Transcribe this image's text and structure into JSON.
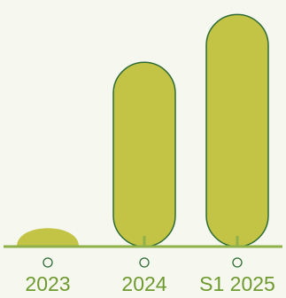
{
  "chart_data": {
    "type": "bar",
    "categories": [
      "2023",
      "2024",
      "S1 2025"
    ],
    "values": [
      1,
      10,
      12.6
    ],
    "title": "",
    "xlabel": "",
    "ylabel": "",
    "ylim": [
      0,
      13
    ],
    "grid": false,
    "legend": "none"
  },
  "colors": {
    "background": "#f6f8ef",
    "bar_fill": "#c3c445",
    "bar_stroke": "#2f6b35",
    "axis": "#8fb14a",
    "label": "#6f9a2f",
    "marker_stroke": "#2f6b35"
  }
}
